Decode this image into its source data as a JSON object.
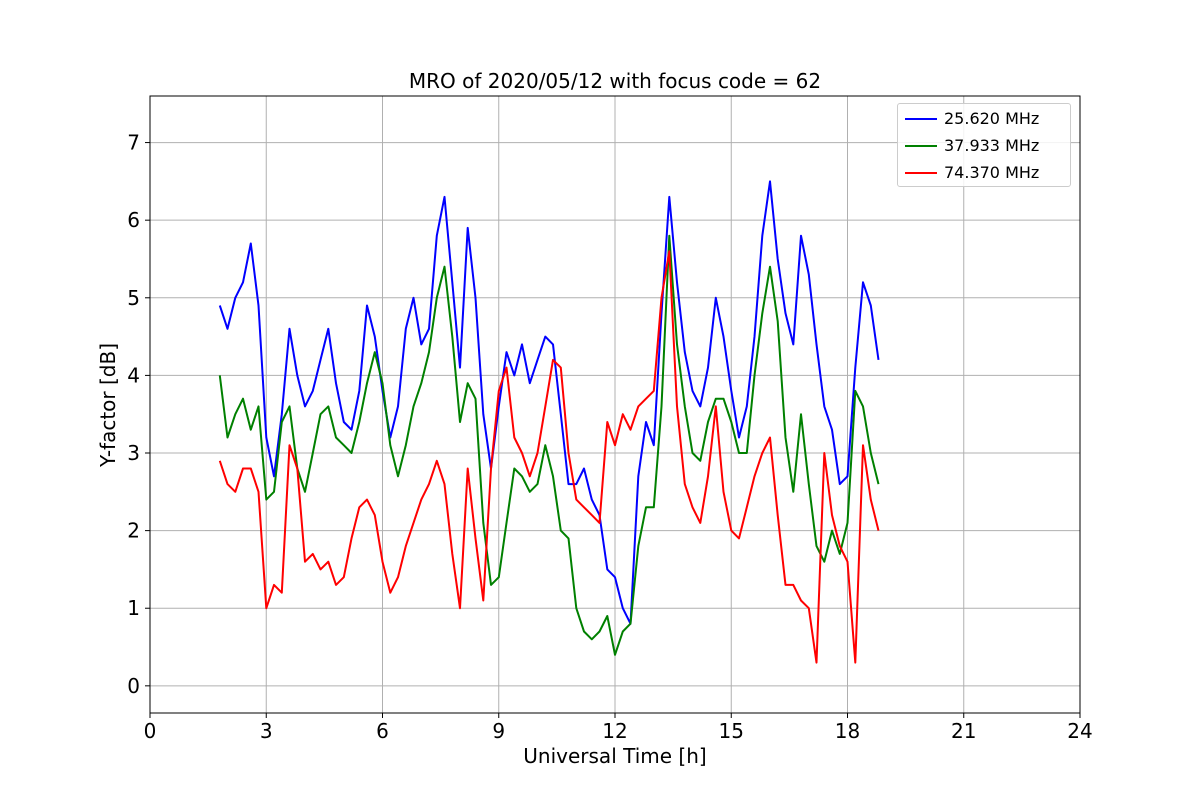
{
  "chart_data": {
    "type": "line",
    "title": "MRO of 2020/05/12 with focus code = 62",
    "xlabel": "Universal Time [h]",
    "ylabel": "Y-factor [dB]",
    "xlim": [
      0,
      24
    ],
    "ylim": [
      -0.35,
      7.6
    ],
    "xticks": [
      "0",
      "3",
      "6",
      "9",
      "12",
      "15",
      "18",
      "21",
      "24"
    ],
    "yticks": [
      "0",
      "1",
      "2",
      "3",
      "4",
      "5",
      "6",
      "7"
    ],
    "grid": true,
    "legend_position": "top-right",
    "series": [
      {
        "name": "25.620 MHz",
        "color": "#0000ff",
        "x": [
          1.8,
          2.0,
          2.2,
          2.4,
          2.6,
          2.8,
          3.0,
          3.2,
          3.4,
          3.6,
          3.8,
          4.0,
          4.2,
          4.4,
          4.6,
          4.8,
          5.0,
          5.2,
          5.4,
          5.6,
          5.8,
          6.0,
          6.2,
          6.4,
          6.6,
          6.8,
          7.0,
          7.2,
          7.4,
          7.6,
          7.8,
          8.0,
          8.2,
          8.4,
          8.6,
          8.8,
          9.0,
          9.2,
          9.4,
          9.6,
          9.8,
          10.0,
          10.2,
          10.4,
          10.6,
          10.8,
          11.0,
          11.2,
          11.4,
          11.6,
          11.8,
          12.0,
          12.2,
          12.4,
          12.6,
          12.8,
          13.0,
          13.2,
          13.4,
          13.6,
          13.8,
          14.0,
          14.2,
          14.4,
          14.6,
          14.8,
          15.0,
          15.2,
          15.4,
          15.6,
          15.8,
          16.0,
          16.2,
          16.4,
          16.6,
          16.8,
          17.0,
          17.2,
          17.4,
          17.6,
          17.8,
          18.0,
          18.2,
          18.4,
          18.6,
          18.8
        ],
        "y": [
          4.9,
          4.6,
          5.0,
          5.2,
          5.7,
          4.9,
          3.2,
          2.7,
          3.5,
          4.6,
          4.0,
          3.6,
          3.8,
          4.2,
          4.6,
          3.9,
          3.4,
          3.3,
          3.8,
          4.9,
          4.5,
          3.8,
          3.2,
          3.6,
          4.6,
          5.0,
          4.4,
          4.6,
          5.8,
          6.3,
          5.2,
          4.1,
          5.9,
          5.0,
          3.5,
          2.8,
          3.6,
          4.3,
          4.0,
          4.4,
          3.9,
          4.2,
          4.5,
          4.4,
          3.5,
          2.6,
          2.6,
          2.8,
          2.4,
          2.2,
          1.5,
          1.4,
          1.0,
          0.8,
          2.7,
          3.4,
          3.1,
          4.8,
          6.3,
          5.2,
          4.3,
          3.8,
          3.6,
          4.1,
          5.0,
          4.5,
          3.8,
          3.2,
          3.6,
          4.5,
          5.8,
          6.5,
          5.5,
          4.8,
          4.4,
          5.8,
          5.3,
          4.4,
          3.6,
          3.3,
          2.6,
          2.7,
          4.1,
          5.2,
          4.9,
          4.2
        ]
      },
      {
        "name": "37.933 MHz",
        "color": "#008000",
        "x": [
          1.8,
          2.0,
          2.2,
          2.4,
          2.6,
          2.8,
          3.0,
          3.2,
          3.4,
          3.6,
          3.8,
          4.0,
          4.2,
          4.4,
          4.6,
          4.8,
          5.0,
          5.2,
          5.4,
          5.6,
          5.8,
          6.0,
          6.2,
          6.4,
          6.6,
          6.8,
          7.0,
          7.2,
          7.4,
          7.6,
          7.8,
          8.0,
          8.2,
          8.4,
          8.6,
          8.8,
          9.0,
          9.2,
          9.4,
          9.6,
          9.8,
          10.0,
          10.2,
          10.4,
          10.6,
          10.8,
          11.0,
          11.2,
          11.4,
          11.6,
          11.8,
          12.0,
          12.2,
          12.4,
          12.6,
          12.8,
          13.0,
          13.2,
          13.4,
          13.6,
          13.8,
          14.0,
          14.2,
          14.4,
          14.6,
          14.8,
          15.0,
          15.2,
          15.4,
          15.6,
          15.8,
          16.0,
          16.2,
          16.4,
          16.6,
          16.8,
          17.0,
          17.2,
          17.4,
          17.6,
          17.8,
          18.0,
          18.2,
          18.4,
          18.6,
          18.8
        ],
        "y": [
          4.0,
          3.2,
          3.5,
          3.7,
          3.3,
          3.6,
          2.4,
          2.5,
          3.4,
          3.6,
          2.8,
          2.5,
          3.0,
          3.5,
          3.6,
          3.2,
          3.1,
          3.0,
          3.4,
          3.9,
          4.3,
          3.9,
          3.1,
          2.7,
          3.1,
          3.6,
          3.9,
          4.3,
          5.0,
          5.4,
          4.5,
          3.4,
          3.9,
          3.7,
          2.1,
          1.3,
          1.4,
          2.1,
          2.8,
          2.7,
          2.5,
          2.6,
          3.1,
          2.7,
          2.0,
          1.9,
          1.0,
          0.7,
          0.6,
          0.7,
          0.9,
          0.4,
          0.7,
          0.8,
          1.8,
          2.3,
          2.3,
          3.6,
          5.8,
          4.4,
          3.6,
          3.0,
          2.9,
          3.4,
          3.7,
          3.7,
          3.4,
          3.0,
          3.0,
          4.0,
          4.8,
          5.4,
          4.7,
          3.2,
          2.5,
          3.5,
          2.6,
          1.8,
          1.6,
          2.0,
          1.7,
          2.1,
          3.8,
          3.6,
          3.0,
          2.6
        ]
      },
      {
        "name": "74.370 MHz",
        "color": "#ff0000",
        "x": [
          1.8,
          2.0,
          2.2,
          2.4,
          2.6,
          2.8,
          3.0,
          3.2,
          3.4,
          3.6,
          3.8,
          4.0,
          4.2,
          4.4,
          4.6,
          4.8,
          5.0,
          5.2,
          5.4,
          5.6,
          5.8,
          6.0,
          6.2,
          6.4,
          6.6,
          6.8,
          7.0,
          7.2,
          7.4,
          7.6,
          7.8,
          8.0,
          8.2,
          8.4,
          8.6,
          8.8,
          9.0,
          9.2,
          9.4,
          9.6,
          9.8,
          10.0,
          10.2,
          10.4,
          10.6,
          10.8,
          11.0,
          11.2,
          11.4,
          11.6,
          11.8,
          12.0,
          12.2,
          12.4,
          12.6,
          12.8,
          13.0,
          13.2,
          13.4,
          13.6,
          13.8,
          14.0,
          14.2,
          14.4,
          14.6,
          14.8,
          15.0,
          15.2,
          15.4,
          15.6,
          15.8,
          16.0,
          16.2,
          16.4,
          16.6,
          16.8,
          17.0,
          17.2,
          17.4,
          17.6,
          17.8,
          18.0,
          18.2,
          18.4,
          18.6,
          18.8
        ],
        "y": [
          2.9,
          2.6,
          2.5,
          2.8,
          2.8,
          2.5,
          1.0,
          1.3,
          1.2,
          3.1,
          2.8,
          1.6,
          1.7,
          1.5,
          1.6,
          1.3,
          1.4,
          1.9,
          2.3,
          2.4,
          2.2,
          1.6,
          1.2,
          1.4,
          1.8,
          2.1,
          2.4,
          2.6,
          2.9,
          2.6,
          1.7,
          1.0,
          2.8,
          1.9,
          1.1,
          2.8,
          3.8,
          4.1,
          3.2,
          3.0,
          2.7,
          3.0,
          3.6,
          4.2,
          4.1,
          3.0,
          2.4,
          2.3,
          2.2,
          2.1,
          3.4,
          3.1,
          3.5,
          3.3,
          3.6,
          3.7,
          3.8,
          5.0,
          5.6,
          3.6,
          2.6,
          2.3,
          2.1,
          2.7,
          3.6,
          2.5,
          2.0,
          1.9,
          2.3,
          2.7,
          3.0,
          3.2,
          2.2,
          1.3,
          1.3,
          1.1,
          1.0,
          0.3,
          3.0,
          2.2,
          1.8,
          1.6,
          0.3,
          3.1,
          2.4,
          2.0
        ]
      }
    ]
  }
}
